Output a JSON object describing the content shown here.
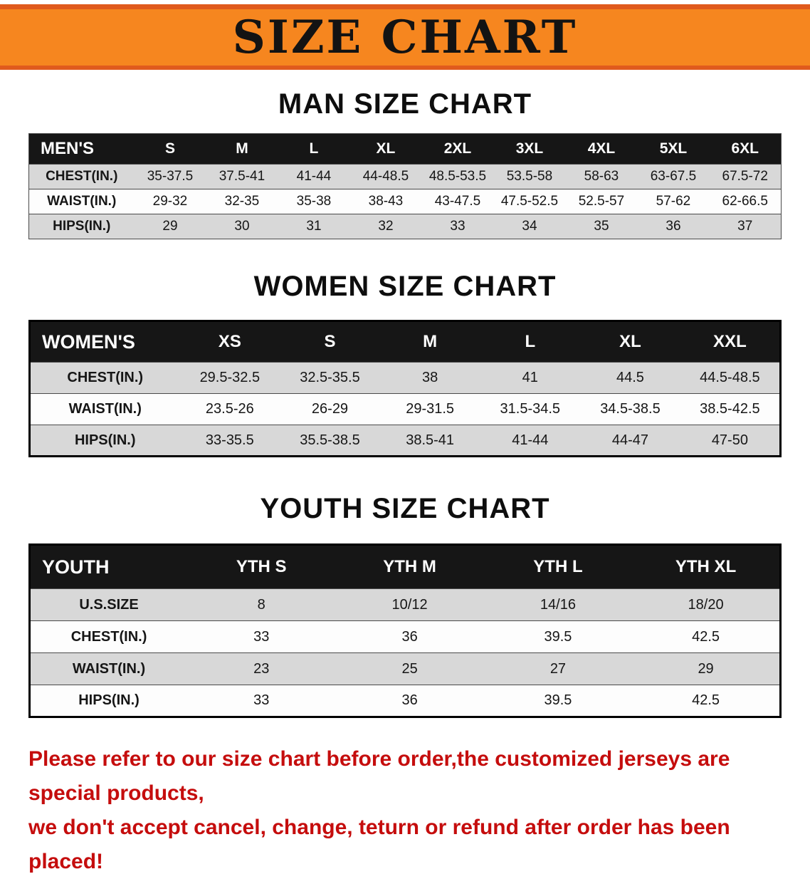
{
  "banner": {
    "title": "SIZE CHART",
    "bg_color": "#f6861f",
    "edge_color": "#e05a1d",
    "text_color": "#131313"
  },
  "tables": [
    {
      "id": "men",
      "heading": "MAN SIZE CHART",
      "header": [
        "MEN'S",
        "S",
        "M",
        "L",
        "XL",
        "2XL",
        "3XL",
        "4XL",
        "5XL",
        "6XL"
      ],
      "rows": [
        [
          "CHEST(IN.)",
          "35-37.5",
          "37.5-41",
          "41-44",
          "44-48.5",
          "48.5-53.5",
          "53.5-58",
          "58-63",
          "63-67.5",
          "67.5-72"
        ],
        [
          "WAIST(IN.)",
          "29-32",
          "32-35",
          "35-38",
          "38-43",
          "43-47.5",
          "47.5-52.5",
          "52.5-57",
          "57-62",
          "62-66.5"
        ],
        [
          "HIPS(IN.)",
          "29",
          "30",
          "31",
          "32",
          "33",
          "34",
          "35",
          "36",
          "37"
        ]
      ]
    },
    {
      "id": "women",
      "heading": "WOMEN SIZE CHART",
      "header": [
        "WOMEN'S",
        "XS",
        "S",
        "M",
        "L",
        "XL",
        "XXL"
      ],
      "rows": [
        [
          "CHEST(IN.)",
          "29.5-32.5",
          "32.5-35.5",
          "38",
          "41",
          "44.5",
          "44.5-48.5"
        ],
        [
          "WAIST(IN.)",
          "23.5-26",
          "26-29",
          "29-31.5",
          "31.5-34.5",
          "34.5-38.5",
          "38.5-42.5"
        ],
        [
          "HIPS(IN.)",
          "33-35.5",
          "35.5-38.5",
          "38.5-41",
          "41-44",
          "44-47",
          "47-50"
        ]
      ]
    },
    {
      "id": "youth",
      "heading": "YOUTH SIZE CHART",
      "header": [
        "YOUTH",
        "YTH S",
        "YTH M",
        "YTH L",
        "YTH XL"
      ],
      "rows": [
        [
          "U.S.SIZE",
          "8",
          "10/12",
          "14/16",
          "18/20"
        ],
        [
          "CHEST(IN.)",
          "33",
          "36",
          "39.5",
          "42.5"
        ],
        [
          "WAIST(IN.)",
          "23",
          "25",
          "27",
          "29"
        ],
        [
          "HIPS(IN.)",
          "33",
          "36",
          "39.5",
          "42.5"
        ]
      ]
    }
  ],
  "footer": {
    "line1": "Please refer to our size chart before order,the customized jerseys are special products,",
    "line2": "we don't accept cancel, change, teturn or refund after order has been placed!",
    "text_color": "#c50d0d"
  },
  "table_style": {
    "header_bg": "#161616",
    "header_text": "#ffffff",
    "shaded_row_bg": "#d8d8d8",
    "plain_row_bg": "#fdfdfd"
  }
}
